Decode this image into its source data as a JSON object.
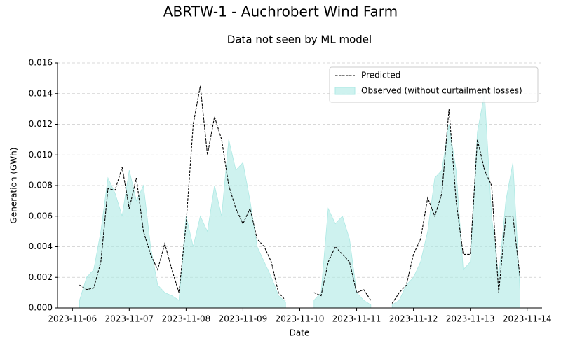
{
  "chart_data": {
    "type": "line",
    "title": "ABRTW-1 - Auchrobert Wind Farm",
    "subtitle": "Data not seen by ML model",
    "x_label": "Date",
    "y_label": "Generation (GWh)",
    "x": [
      "2023-11-06 03:00",
      "2023-11-06 06:00",
      "2023-11-06 09:00",
      "2023-11-06 12:00",
      "2023-11-06 15:00",
      "2023-11-06 18:00",
      "2023-11-06 21:00",
      "2023-11-07 00:00",
      "2023-11-07 03:00",
      "2023-11-07 06:00",
      "2023-11-07 09:00",
      "2023-11-07 12:00",
      "2023-11-07 15:00",
      "2023-11-07 18:00",
      "2023-11-07 21:00",
      "2023-11-08 00:00",
      "2023-11-08 03:00",
      "2023-11-08 06:00",
      "2023-11-08 09:00",
      "2023-11-08 12:00",
      "2023-11-08 15:00",
      "2023-11-08 18:00",
      "2023-11-08 21:00",
      "2023-11-09 00:00",
      "2023-11-09 03:00",
      "2023-11-09 06:00",
      "2023-11-09 09:00",
      "2023-11-09 12:00",
      "2023-11-09 15:00",
      "2023-11-09 18:00",
      "2023-11-09 21:00",
      "2023-11-10 00:00",
      "2023-11-10 03:00",
      "2023-11-10 06:00",
      "2023-11-10 09:00",
      "2023-11-10 12:00",
      "2023-11-10 15:00",
      "2023-11-10 18:00",
      "2023-11-10 21:00",
      "2023-11-11 00:00",
      "2023-11-11 03:00",
      "2023-11-11 06:00",
      "2023-11-11 09:00",
      "2023-11-11 12:00",
      "2023-11-11 15:00",
      "2023-11-11 18:00",
      "2023-11-11 21:00",
      "2023-11-12 00:00",
      "2023-11-12 03:00",
      "2023-11-12 06:00",
      "2023-11-12 09:00",
      "2023-11-12 12:00",
      "2023-11-12 15:00",
      "2023-11-12 18:00",
      "2023-11-12 21:00",
      "2023-11-13 00:00",
      "2023-11-13 03:00",
      "2023-11-13 06:00",
      "2023-11-13 09:00",
      "2023-11-13 12:00",
      "2023-11-13 15:00",
      "2023-11-13 18:00",
      "2023-11-13 21:00"
    ],
    "series": [
      {
        "name": "Predicted",
        "style": "dashed",
        "color": "#000000",
        "values": [
          0.0015,
          0.0012,
          0.0013,
          0.003,
          0.0078,
          0.0077,
          0.0092,
          0.0065,
          0.0085,
          0.005,
          0.0035,
          0.0025,
          0.0042,
          0.0025,
          0.001,
          0.0055,
          0.012,
          0.0145,
          0.01,
          0.0125,
          0.011,
          0.008,
          0.0065,
          0.0055,
          0.0065,
          0.0045,
          0.004,
          0.003,
          0.001,
          0.0005,
          null,
          null,
          null,
          0.001,
          0.0008,
          0.003,
          0.004,
          0.0035,
          0.003,
          0.001,
          0.0012,
          0.0005,
          null,
          null,
          0.0003,
          0.001,
          0.0015,
          0.0035,
          0.0045,
          0.0072,
          0.006,
          0.0075,
          0.013,
          0.007,
          0.0035,
          0.0035,
          0.011,
          0.009,
          0.008,
          0.001,
          0.006,
          0.006,
          0.002
        ]
      },
      {
        "name": "Observed (without curtailment losses)",
        "style": "area",
        "color": "#aee9e4",
        "values": [
          0.0005,
          0.002,
          0.0025,
          0.005,
          0.0085,
          0.0075,
          0.006,
          0.009,
          0.007,
          0.008,
          0.004,
          0.0015,
          0.001,
          0.0008,
          0.0005,
          0.006,
          0.004,
          0.006,
          0.005,
          0.008,
          0.006,
          0.011,
          0.009,
          0.0095,
          0.007,
          0.004,
          0.003,
          0.002,
          0.0008,
          0.0004,
          null,
          null,
          null,
          0.0005,
          0.001,
          0.0065,
          0.0055,
          0.006,
          0.0045,
          0.001,
          0.0005,
          0.0002,
          null,
          null,
          0.0002,
          0.0005,
          0.0015,
          0.002,
          0.003,
          0.005,
          0.0085,
          0.009,
          0.012,
          0.009,
          0.0025,
          0.003,
          0.0115,
          0.014,
          0.006,
          0.002,
          0.007,
          0.0095,
          0.001
        ]
      }
    ],
    "xlim": [
      "2023-11-06 03:00",
      "2023-11-13 21:00"
    ],
    "xticks": [
      "2023-11-06",
      "2023-11-07",
      "2023-11-08",
      "2023-11-09",
      "2023-11-10",
      "2023-11-11",
      "2023-11-12",
      "2023-11-13",
      "2023-11-14"
    ],
    "ylim": [
      0,
      0.016
    ],
    "yticks": [
      {
        "value": 0,
        "label": "0.000"
      },
      {
        "value": 0.002,
        "label": "0.002"
      },
      {
        "value": 0.004,
        "label": "0.004"
      },
      {
        "value": 0.006,
        "label": "0.006"
      },
      {
        "value": 0.008,
        "label": "0.008"
      },
      {
        "value": 0.01,
        "label": "0.010"
      },
      {
        "value": 0.012,
        "label": "0.012"
      },
      {
        "value": 0.014,
        "label": "0.014"
      },
      {
        "value": 0.016,
        "label": "0.016"
      }
    ],
    "grid": true,
    "legend": "upper right"
  }
}
